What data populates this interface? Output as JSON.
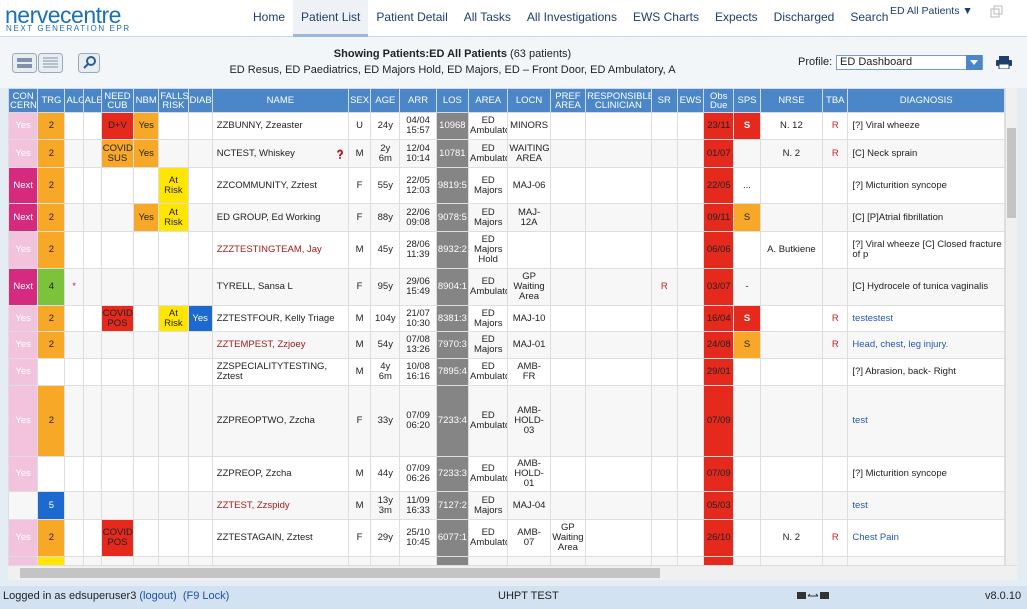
{
  "header": {
    "logo": "nervecentre",
    "tagline": "NEXT GENERATION EPR",
    "nav": [
      "Home",
      "Patient List",
      "Patient Detail",
      "All Tasks",
      "All Investigations",
      "EWS Charts",
      "Expects",
      "Discharged",
      "Search"
    ],
    "list_selector": "ED All Patients"
  },
  "summary": {
    "title": "Showing Patients:ED All Patients",
    "count": "(63 patients)",
    "areas": "ED Resus, ED Paediatrics, ED Majors Hold, ED Majors, ED – Front Door, ED Ambulatory, A",
    "profile_label": "Profile:",
    "profile": "ED Dashboard"
  },
  "table": {
    "columns": [
      "CON CERN",
      "TRG",
      "ALG",
      "ALE",
      "NEED CUB",
      "NBM",
      "FALLS RISK",
      "DIAB",
      "NAME",
      "SEX",
      "AGE",
      "ARR",
      "LOS",
      "AREA",
      "LOCN",
      "PREF AREA",
      "RESPONSIBLE CLINICIAN",
      "SR",
      "EWS",
      "Obs Due",
      "SPS",
      "NRSE",
      "TBA",
      "DIAGNOSIS"
    ],
    "rows": [
      [
        "Yes",
        "2",
        null,
        null,
        "D+V",
        "Yes",
        null,
        null,
        "ZZBUNNY, Zzeaster",
        "U",
        "24y",
        "04/04\n15:57",
        "10968",
        "ED\nAmbulato",
        "MINORS",
        null,
        null,
        null,
        null,
        "23/11",
        "S",
        "N. 12",
        "R",
        "[?] Viral wheeze"
      ],
      [
        "Yes",
        "2",
        null,
        null,
        "COVID\nSUS",
        "Yes",
        null,
        null,
        "NCTEST, Whiskey",
        "M",
        "2y\n6m",
        "12/04\n10:14",
        "10781",
        "ED\nAmbulato",
        "WAITING\nAREA",
        null,
        null,
        null,
        null,
        "01/07",
        null,
        "N. 2",
        "R",
        "[C] Neck sprain"
      ],
      [
        "Next",
        "2",
        null,
        null,
        null,
        null,
        "At\nRisk",
        null,
        "ZZCOMMUNITY, Zztest",
        "F",
        "55y",
        "22/05\n12:03",
        "9819:5",
        "ED\nMajors",
        "MAJ-06",
        null,
        null,
        null,
        null,
        "22/05",
        "...",
        null,
        null,
        "[?] Micturition syncope"
      ],
      [
        "Next",
        "2",
        null,
        null,
        null,
        "Yes",
        "At\nRisk",
        null,
        "ED GROUP, Ed Working",
        "F",
        "88y",
        "22/06\n09:08",
        "9078:5",
        "ED\nMajors",
        "MAJ-\n12A",
        null,
        null,
        null,
        null,
        "09/11",
        "S",
        null,
        null,
        "[C] [P]Atrial fibrillation"
      ],
      [
        "Yes",
        "2",
        null,
        null,
        null,
        null,
        null,
        null,
        "ZZZTESTINGTEAM, Jay",
        "M",
        "45y",
        "28/06\n11:39",
        "8932:2",
        "ED\nMajors\nHold",
        null,
        null,
        null,
        null,
        null,
        "06/06",
        null,
        "A. Butkiene",
        null,
        "[?] Viral wheeze [C] Closed fracture of p"
      ],
      [
        "Next",
        "4",
        "*",
        null,
        null,
        null,
        null,
        null,
        "TYRELL, Sansa L",
        "F",
        "95y",
        "29/06\n15:49",
        "8904:1",
        "ED\nAmbulato",
        "GP\nWaiting\nArea",
        null,
        null,
        "R",
        null,
        "03/07",
        "-",
        null,
        null,
        "[C] Hydrocele of tunica vaginalis"
      ],
      [
        "Yes",
        "2",
        null,
        null,
        "COVID\nPOS",
        null,
        "At\nRisk",
        "Yes",
        "ZZTESTFOUR, Kelly Triage",
        "M",
        "104y",
        "21/07\n10:30",
        "8381:3",
        "ED\nMajors",
        "MAJ-10",
        null,
        null,
        null,
        null,
        "16/04",
        "S",
        null,
        "R",
        "testestest"
      ],
      [
        "Yes",
        "2",
        null,
        null,
        null,
        null,
        null,
        null,
        "ZZTEMPEST, Zzjoey",
        "M",
        "54y",
        "07/08\n13:26",
        "7970:3",
        "ED\nMajors",
        "MAJ-01",
        null,
        null,
        null,
        null,
        "24/08",
        "S",
        null,
        "R",
        "Head, chest, leg injury."
      ],
      [
        "Yes",
        null,
        null,
        null,
        null,
        null,
        null,
        null,
        "ZZSPECIALITYTESTING,\nZztest",
        "M",
        "4y\n6m",
        "10/08\n16:16",
        "7895:4",
        "ED\nAmbulato",
        "AMB-\nFR",
        null,
        null,
        null,
        null,
        "29/01",
        null,
        null,
        null,
        "[?] Abrasion, back- Right"
      ],
      [
        "Yes",
        "2",
        null,
        null,
        null,
        null,
        null,
        null,
        "ZZPREOPTWO, Zzcha",
        "F",
        "33y",
        "07/09\n06:20",
        "7233:4",
        "ED\nAmbulato",
        "AMB-\nHOLD-\n03",
        null,
        null,
        null,
        null,
        "07/09",
        null,
        null,
        null,
        "test"
      ],
      [
        "Yes",
        null,
        null,
        null,
        null,
        null,
        null,
        null,
        "ZZPREOP, Zzcha",
        "M",
        "44y",
        "07/09\n06:26",
        "7233:3",
        "ED\nAmbulato",
        "AMB-\nHOLD-\n01",
        null,
        null,
        null,
        null,
        "07/09",
        null,
        null,
        null,
        "[?] Micturition syncope"
      ],
      [
        null,
        "5",
        null,
        null,
        null,
        null,
        null,
        null,
        "ZZTEST, Zzspidy",
        "M",
        "13y\n3m",
        "11/09\n16:33",
        "7127:2",
        "ED\nMajors",
        "MAJ-04",
        null,
        null,
        null,
        null,
        "05/03",
        null,
        null,
        null,
        "test"
      ],
      [
        "Yes",
        "2",
        null,
        null,
        "COVID\nPOS",
        null,
        null,
        null,
        "ZZTESTAGAIN, Zztest",
        "F",
        "29y",
        "25/10\n10:45",
        "6077:1",
        "ED\nAmbulato",
        "AMB-\n07",
        "GP\nWaiting\nArea",
        null,
        null,
        null,
        "26/10",
        null,
        "N. 2",
        "R",
        "Chest Pain"
      ]
    ]
  },
  "footer": {
    "user": "Logged in as edsuperuser3",
    "logout": "(logout)",
    "lock": "(F9 Lock)",
    "site": "UHPT TEST",
    "version": "v8.0.10"
  }
}
